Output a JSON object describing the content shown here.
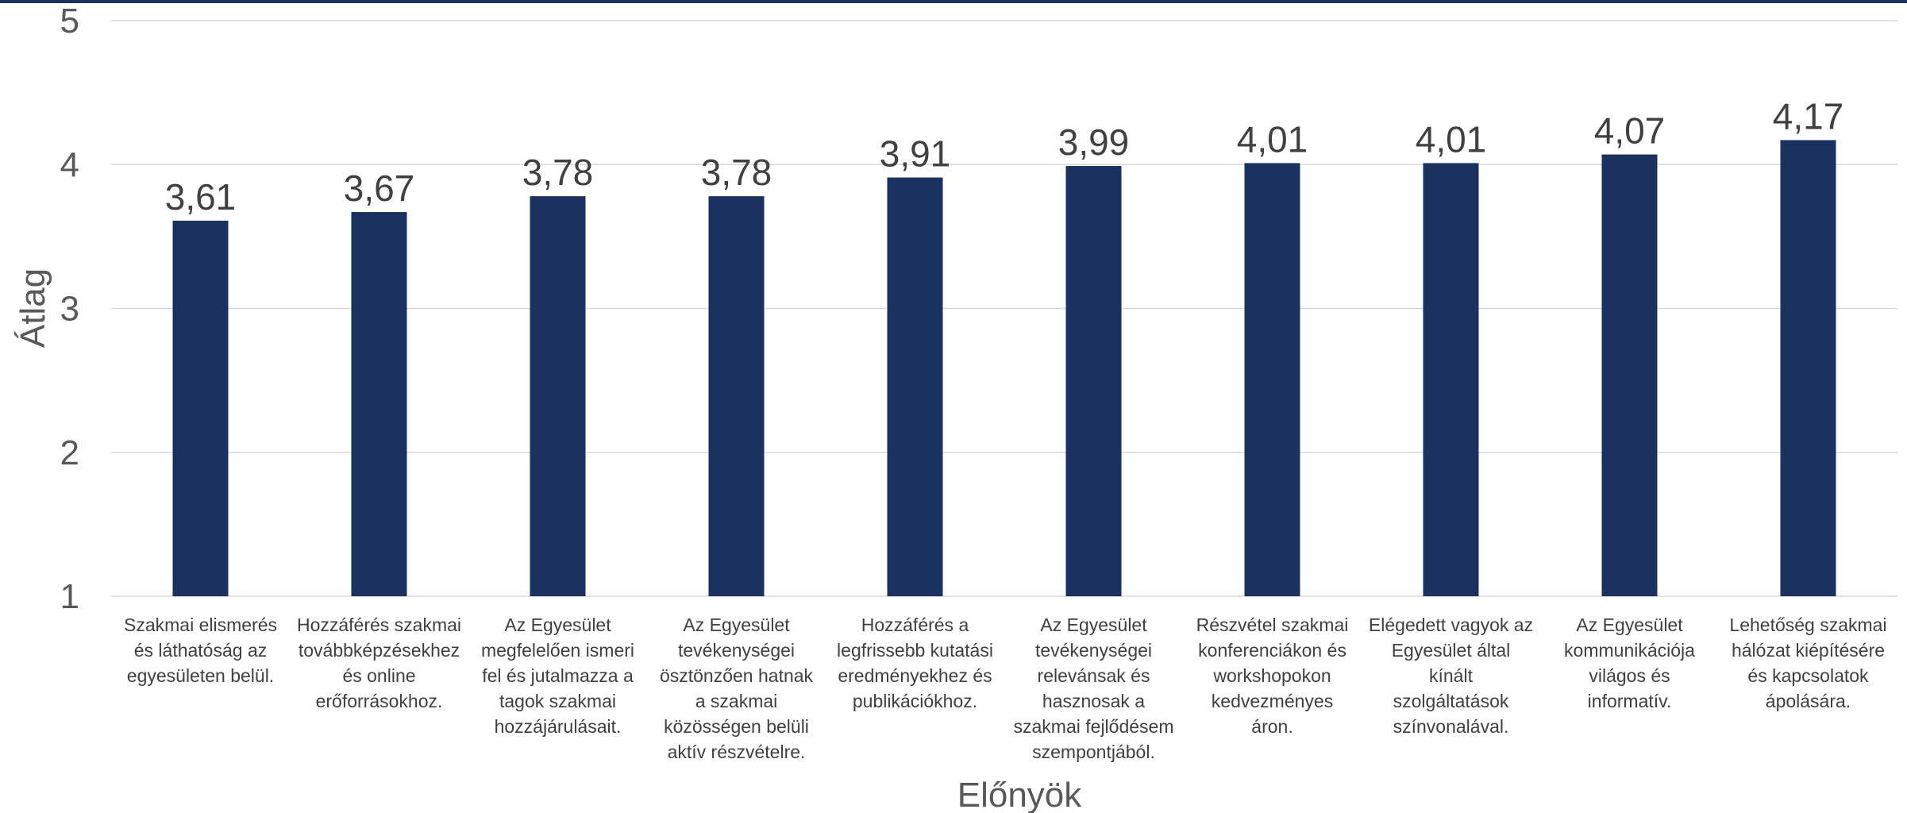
{
  "chart_data": {
    "type": "bar",
    "xlabel": "Előnyök",
    "ylabel": "Átlag",
    "ylim": [
      1,
      5
    ],
    "yticks": [
      1,
      2,
      3,
      4,
      5
    ],
    "ytick_labels": [
      "1",
      "2",
      "3",
      "4",
      "5"
    ],
    "grid": true,
    "bar_color": "#1b3261",
    "categories": [
      "Szakmai elismerés és láthatóság az egyesületen belül.",
      "Hozzáférés szakmai továbbképzésekhez és online erőforrásokhoz.",
      "Az Egyesület megfelelően ismeri fel és jutalmazza a tagok szakmai hozzájárulásait.",
      "Az Egyesület tevékenységei ösztönzően hatnak a szakmai közösségen belüli aktív részvételre.",
      "Hozzáférés a legfrissebb kutatási eredményekhez és publikációkhoz.",
      "Az Egyesület tevékenységei relevánsak és hasznosak a szakmai fejlődésem szempontjából.",
      "Részvétel szakmai konferenciákon és workshopokon kedvezményes áron.",
      "Elégedett vagyok az Egyesület által kínált szolgáltatások színvonalával.",
      "Az Egyesület kommunikációja világos és informatív.",
      "Lehetőség szakmai hálózat kiépítésére és kapcsolatok ápolására."
    ],
    "category_lines": [
      [
        "Szakmai elismerés",
        "és láthatóság az",
        "egyesületen belül."
      ],
      [
        "Hozzáférés szakmai",
        "továbbképzésekhez",
        "és online",
        "erőforrásokhoz."
      ],
      [
        "Az Egyesület",
        "megfelelően ismeri",
        "fel és jutalmazza a",
        "tagok szakmai",
        "hozzájárulásait."
      ],
      [
        "Az Egyesület",
        "tevékenységei",
        "ösztönzően hatnak",
        "a szakmai",
        "közösségen belüli",
        "aktív részvételre."
      ],
      [
        "Hozzáférés a",
        "legfrissebb kutatási",
        "eredményekhez és",
        "publikációkhoz."
      ],
      [
        "Az Egyesület",
        "tevékenységei",
        "relevánsak és",
        "hasznosak a",
        "szakmai fejlődésem",
        "szempontjából."
      ],
      [
        "Részvétel szakmai",
        "konferenciákon és",
        "workshopokon",
        "kedvezményes",
        "áron."
      ],
      [
        "Elégedett vagyok az",
        "Egyesület által",
        "kínált",
        "szolgáltatások",
        "színvonalával."
      ],
      [
        "Az Egyesület",
        "kommunikációja",
        "világos és",
        "informatív."
      ],
      [
        "Lehetőség szakmai",
        "hálózat kiépítésére",
        "és kapcsolatok",
        "ápolására."
      ]
    ],
    "values": [
      3.61,
      3.67,
      3.78,
      3.78,
      3.91,
      3.99,
      4.01,
      4.01,
      4.07,
      4.17
    ],
    "value_labels": [
      "3,61",
      "3,67",
      "3,78",
      "3,78",
      "3,91",
      "3,99",
      "4,01",
      "4,01",
      "4,07",
      "4,17"
    ]
  }
}
